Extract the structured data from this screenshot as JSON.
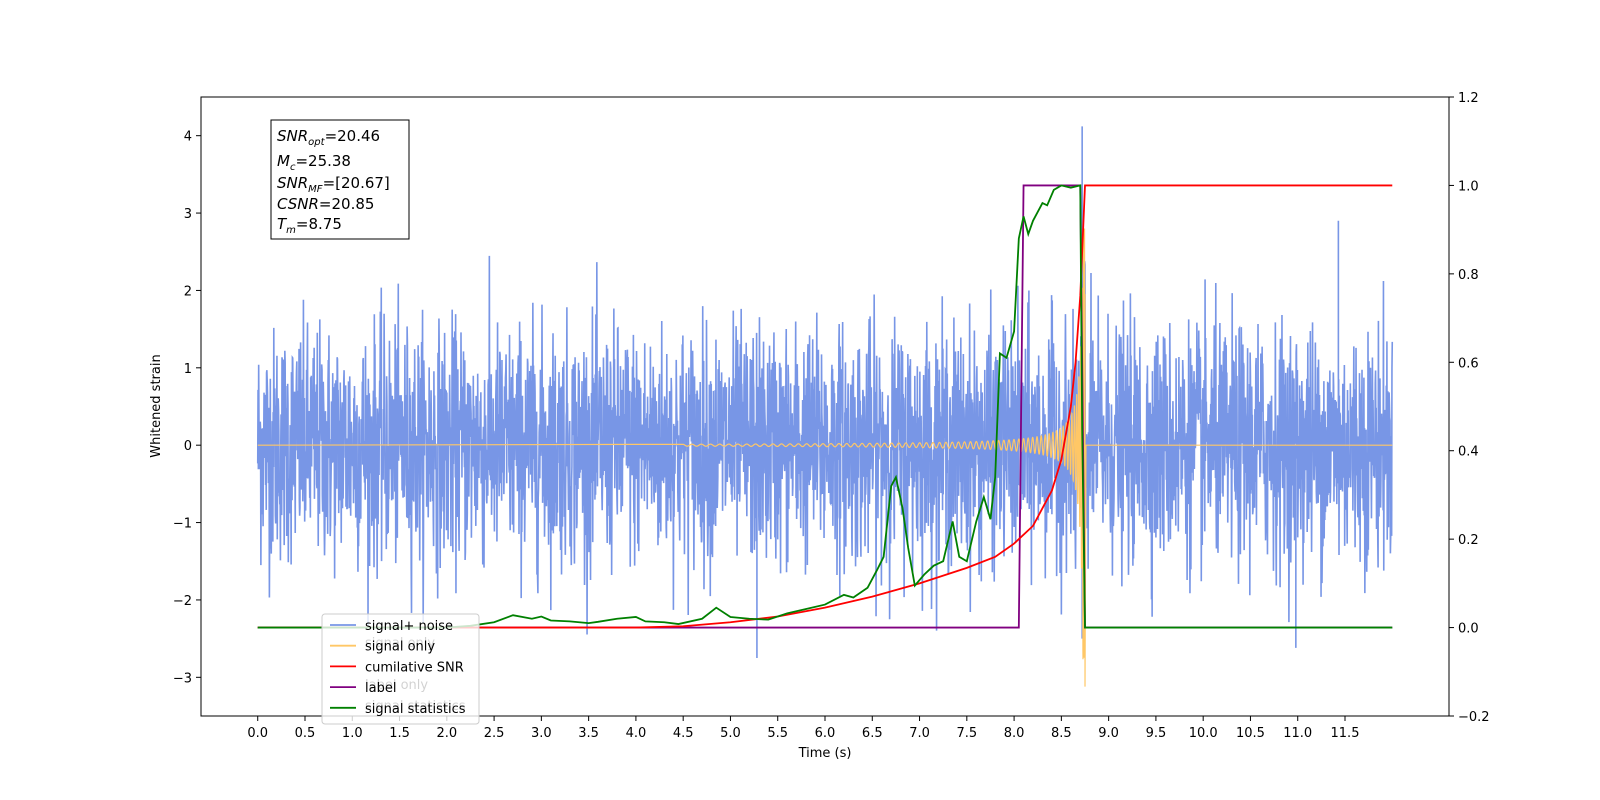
{
  "chart_data": {
    "type": "line",
    "xlabel": "Time (s)",
    "ylabel": "Whitened strain",
    "x_range": [
      -0.6,
      12.6
    ],
    "ylim_left": [
      -3.5,
      4.5
    ],
    "ylim_right": [
      -0.2,
      1.2
    ],
    "x_ticks": [
      0.0,
      0.5,
      1.0,
      1.5,
      2.0,
      2.5,
      3.0,
      3.5,
      4.0,
      4.5,
      5.0,
      5.5,
      6.0,
      6.5,
      7.0,
      7.5,
      8.0,
      8.5,
      9.0,
      9.5,
      10.0,
      10.5,
      11.0,
      11.5
    ],
    "x_tick_labels": [
      "0.0",
      "0.5",
      "1.0",
      "1.5",
      "2.0",
      "2.5",
      "3.0",
      "3.5",
      "4.0",
      "4.5",
      "5.0",
      "5.5",
      "6.0",
      "6.5",
      "7.0",
      "7.5",
      "8.0",
      "8.5",
      "9.0",
      "9.5",
      "10.0",
      "10.5",
      "11.0",
      "11.5"
    ],
    "y_ticks_left": [
      -3,
      -2,
      -1,
      0,
      1,
      2,
      3,
      4
    ],
    "y_tick_labels_left": [
      "−3",
      "−2",
      "−1",
      "0",
      "1",
      "2",
      "3",
      "4"
    ],
    "y_ticks_right": [
      -0.2,
      0.0,
      0.2,
      0.4,
      0.6,
      0.8,
      1.0,
      1.2
    ],
    "y_tick_labels_right": [
      "−0.2",
      "0.0",
      "0.2",
      "0.4",
      "0.6",
      "0.8",
      "1.0",
      "1.2"
    ],
    "legend_position": "bottom-left",
    "annotation": {
      "lines": [
        {
          "sym": "SNR",
          "sub": "opt",
          "value": "=20.46"
        },
        {
          "sym": "M",
          "sub": "c",
          "value": "=25.38"
        },
        {
          "sym": "SNR",
          "sub": "MF",
          "value": "=[20.67]"
        },
        {
          "sym": "CSNR",
          "sub": "",
          "value": "=20.85"
        },
        {
          "sym": "T",
          "sub": "m",
          "value": "=8.75"
        }
      ]
    },
    "series": [
      {
        "name": "signal+ noise",
        "color": "#7896e6",
        "axis": "left",
        "description_noise_std": 0.75,
        "merger_time": 8.75,
        "notable_points": [
          [
            8.72,
            4.12
          ],
          [
            8.72,
            -2.5
          ],
          [
            5.28,
            -2.75
          ],
          [
            10.98,
            -2.62
          ],
          [
            11.43,
            2.9
          ]
        ]
      },
      {
        "name": "signal only",
        "color": "#ffc766",
        "axis": "left",
        "chirp_end": 8.75,
        "peak_amplitude": 2.8,
        "min_value": -3.12
      },
      {
        "name": "cumilative SNR",
        "color": "#ff0000",
        "axis": "right",
        "points": [
          [
            0.0,
            0.0
          ],
          [
            4.0,
            0.0
          ],
          [
            4.5,
            0.003
          ],
          [
            5.0,
            0.012
          ],
          [
            5.5,
            0.025
          ],
          [
            6.0,
            0.045
          ],
          [
            6.5,
            0.07
          ],
          [
            7.0,
            0.1
          ],
          [
            7.5,
            0.135
          ],
          [
            7.8,
            0.16
          ],
          [
            8.0,
            0.19
          ],
          [
            8.2,
            0.23
          ],
          [
            8.4,
            0.31
          ],
          [
            8.5,
            0.38
          ],
          [
            8.6,
            0.5
          ],
          [
            8.65,
            0.6
          ],
          [
            8.7,
            0.75
          ],
          [
            8.74,
            0.95
          ],
          [
            8.75,
            1.0
          ],
          [
            12.0,
            1.0
          ]
        ]
      },
      {
        "name": "label",
        "color": "#800080",
        "axis": "right",
        "points": [
          [
            0.0,
            0.0
          ],
          [
            8.05,
            0.0
          ],
          [
            8.1,
            1.0
          ],
          [
            8.7,
            1.0
          ],
          [
            8.75,
            0.0
          ],
          [
            12.0,
            0.0
          ]
        ]
      },
      {
        "name": "signal statistics",
        "color": "#008000",
        "axis": "right",
        "points": [
          [
            0.0,
            0.0
          ],
          [
            2.0,
            0.0
          ],
          [
            2.25,
            0.004
          ],
          [
            2.5,
            0.012
          ],
          [
            2.7,
            0.028
          ],
          [
            2.9,
            0.02
          ],
          [
            3.0,
            0.025
          ],
          [
            3.1,
            0.016
          ],
          [
            3.3,
            0.014
          ],
          [
            3.5,
            0.01
          ],
          [
            3.6,
            0.013
          ],
          [
            3.8,
            0.02
          ],
          [
            4.0,
            0.024
          ],
          [
            4.1,
            0.014
          ],
          [
            4.3,
            0.012
          ],
          [
            4.45,
            0.008
          ],
          [
            4.7,
            0.02
          ],
          [
            4.85,
            0.045
          ],
          [
            5.0,
            0.024
          ],
          [
            5.2,
            0.02
          ],
          [
            5.4,
            0.018
          ],
          [
            5.6,
            0.032
          ],
          [
            5.8,
            0.042
          ],
          [
            6.0,
            0.052
          ],
          [
            6.2,
            0.074
          ],
          [
            6.3,
            0.068
          ],
          [
            6.45,
            0.09
          ],
          [
            6.55,
            0.13
          ],
          [
            6.62,
            0.16
          ],
          [
            6.7,
            0.32
          ],
          [
            6.75,
            0.34
          ],
          [
            6.82,
            0.27
          ],
          [
            6.88,
            0.18
          ],
          [
            6.95,
            0.095
          ],
          [
            7.05,
            0.12
          ],
          [
            7.15,
            0.14
          ],
          [
            7.25,
            0.15
          ],
          [
            7.35,
            0.24
          ],
          [
            7.42,
            0.16
          ],
          [
            7.5,
            0.15
          ],
          [
            7.6,
            0.24
          ],
          [
            7.68,
            0.295
          ],
          [
            7.75,
            0.245
          ],
          [
            7.8,
            0.34
          ],
          [
            7.85,
            0.62
          ],
          [
            7.92,
            0.61
          ],
          [
            8.0,
            0.67
          ],
          [
            8.05,
            0.88
          ],
          [
            8.1,
            0.93
          ],
          [
            8.15,
            0.89
          ],
          [
            8.2,
            0.92
          ],
          [
            8.3,
            0.96
          ],
          [
            8.35,
            0.955
          ],
          [
            8.42,
            0.99
          ],
          [
            8.5,
            1.0
          ],
          [
            8.6,
            0.995
          ],
          [
            8.7,
            1.0
          ],
          [
            8.72,
            0.45
          ],
          [
            8.75,
            0.0
          ],
          [
            12.0,
            0.0
          ]
        ]
      }
    ],
    "legend": [
      "signal+ noise",
      "signal only",
      "cumilative SNR",
      "label",
      "signal statistics"
    ],
    "legend_ghost_texts": [
      "signal only",
      "label only",
      "signal statistics"
    ]
  }
}
